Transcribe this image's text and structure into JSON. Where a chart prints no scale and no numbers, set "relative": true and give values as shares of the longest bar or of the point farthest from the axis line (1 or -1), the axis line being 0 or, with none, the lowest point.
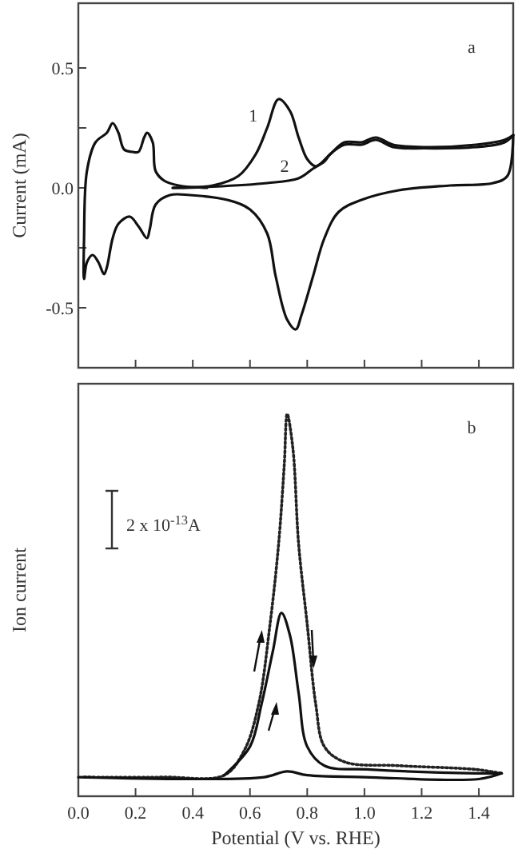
{
  "chart_data": [
    {
      "type": "line",
      "ylabel": "Current (mA)",
      "annotations": [
        "a"
      ],
      "tick_labels": "y",
      "xlim": [
        0,
        1.52
      ],
      "xticks": [
        {
          "value": 0.2,
          "label": null
        },
        {
          "value": 0.4,
          "label": null
        },
        {
          "value": 0.6,
          "label": null
        },
        {
          "value": 0.8,
          "label": null
        },
        {
          "value": 1.0,
          "label": null
        },
        {
          "value": 1.2,
          "label": null
        },
        {
          "value": 1.4,
          "label": null
        }
      ],
      "ylim": [
        -0.75,
        0.77
      ],
      "yticks": [
        {
          "value": -0.5,
          "label": "-0.5"
        },
        {
          "value": -0.25,
          "label": null
        },
        {
          "value": 0,
          "label": "0.0"
        },
        {
          "value": 0.25,
          "label": null
        },
        {
          "value": 0.5,
          "label": "0.5"
        }
      ],
      "series": [
        {
          "name": "1",
          "color": "#111111",
          "x": [
            0.33,
            0.47,
            0.56,
            0.62,
            0.66,
            0.7,
            0.74,
            0.77,
            0.8,
            0.83,
            0.88,
            0.93,
            0.99,
            1.04,
            1.1,
            1.21,
            1.39,
            1.49,
            1.52
          ],
          "values": [
            0,
            0.01,
            0.05,
            0.14,
            0.25,
            0.37,
            0.32,
            0.21,
            0.12,
            0.09,
            0.14,
            0.19,
            0.19,
            0.21,
            0.18,
            0.17,
            0.18,
            0.2,
            0.22
          ]
        },
        {
          "name": "2",
          "color": "#111111",
          "x": [
            0.33,
            0.47,
            0.66,
            0.77,
            0.82,
            0.86,
            0.88,
            0.93,
            0.99,
            1.04,
            1.1,
            1.21,
            1.39,
            1.49,
            1.52
          ],
          "values": [
            0,
            0.005,
            0.02,
            0.04,
            0.08,
            0.11,
            0.14,
            0.18,
            0.18,
            0.2,
            0.17,
            0.165,
            0.17,
            0.19,
            0.22
          ]
        },
        {
          "color": "#111111",
          "x": [
            1.52,
            1.5,
            1.45,
            1.3,
            1.12,
            0.99,
            0.91,
            0.86,
            0.82,
            0.78,
            0.76,
            0.73,
            0.69,
            0.66,
            0.6,
            0.52,
            0.39,
            0.32,
            0.27,
            0.25,
            0.24,
            0.21,
            0.18,
            0.14,
            0.12,
            0.1,
            0.09,
            0.07,
            0.05,
            0.03,
            0.02,
            0.02,
            0.03,
            0.06,
            0.1,
            0.12,
            0.14,
            0.16,
            0.19,
            0.21,
            0.23,
            0.24,
            0.26,
            0.27,
            0.3,
            0.35,
            0.45
          ],
          "values": [
            0.22,
            0.05,
            0.02,
            0.01,
            -0.01,
            -0.05,
            -0.1,
            -0.21,
            -0.37,
            -0.53,
            -0.59,
            -0.55,
            -0.37,
            -0.19,
            -0.09,
            -0.05,
            -0.03,
            -0.03,
            -0.07,
            -0.17,
            -0.21,
            -0.16,
            -0.12,
            -0.15,
            -0.21,
            -0.33,
            -0.36,
            -0.31,
            -0.28,
            -0.31,
            -0.38,
            -0.21,
            0.07,
            0.19,
            0.23,
            0.27,
            0.23,
            0.16,
            0.15,
            0.15,
            0.21,
            0.23,
            0.19,
            0.07,
            0.03,
            0.01,
            0
          ]
        }
      ]
    },
    {
      "type": "line",
      "relative": true,
      "xlabel": "Potential (V vs. RHE)",
      "ylabel": "Ion current",
      "annotations": [
        "b",
        "2 x 10$^{-13}$A"
      ],
      "tick_labels": "x",
      "xlim": [
        0,
        1.52
      ],
      "xticks": [
        {
          "value": 0,
          "label": "0.0"
        },
        {
          "value": 0.2,
          "label": "0.2"
        },
        {
          "value": 0.4,
          "label": "0.4"
        },
        {
          "value": 0.6,
          "label": "0.6"
        },
        {
          "value": 0.8,
          "label": "0.8"
        },
        {
          "value": 1.0,
          "label": "1.0"
        },
        {
          "value": 1.2,
          "label": "1.2"
        },
        {
          "value": 1.4,
          "label": "1.4"
        }
      ],
      "series": [
        {
          "color": "#222222",
          "line_style": "dotted",
          "x": [
            0.02,
            0.3,
            0.51,
            0.58,
            0.63,
            0.67,
            0.7,
            0.72,
            0.73,
            0.75,
            0.77,
            0.8,
            0.83,
            0.86,
            0.93,
            1.12,
            1.39,
            1.48
          ],
          "values": [
            0.05,
            0.05,
            0.055,
            0.12,
            0.24,
            0.45,
            0.66,
            0.87,
            1.0,
            0.91,
            0.66,
            0.45,
            0.24,
            0.13,
            0.09,
            0.08,
            0.07,
            0.06
          ]
        },
        {
          "color": "#111111",
          "line_style": "solid",
          "x": [
            0.51,
            0.6,
            0.64,
            0.68,
            0.71,
            0.74,
            0.77,
            0.8,
            0.86,
            1.02,
            1.39,
            1.48
          ],
          "values": [
            0.055,
            0.13,
            0.24,
            0.38,
            0.48,
            0.42,
            0.27,
            0.13,
            0.08,
            0.07,
            0.06,
            0.06
          ]
        },
        {
          "color": "#111111",
          "line_style": "solid",
          "x": [
            1.48,
            1.4,
            1.0,
            0.8,
            0.73,
            0.65,
            0.4,
            0.0
          ],
          "values": [
            0.06,
            0.045,
            0.05,
            0.055,
            0.065,
            0.05,
            0.045,
            0.05
          ]
        }
      ]
    }
  ]
}
